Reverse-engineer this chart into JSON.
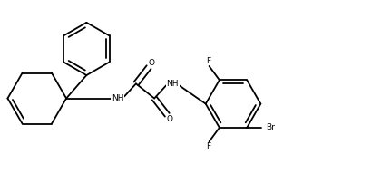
{
  "background_color": "#ffffff",
  "line_color": "#000000",
  "text_color": "#000000",
  "figsize": [
    4.09,
    2.13
  ],
  "dpi": 100,
  "bond_lw": 1.3,
  "font_size": 6.5,
  "xlim": [
    0,
    10
  ],
  "ylim": [
    0,
    5.2
  ]
}
